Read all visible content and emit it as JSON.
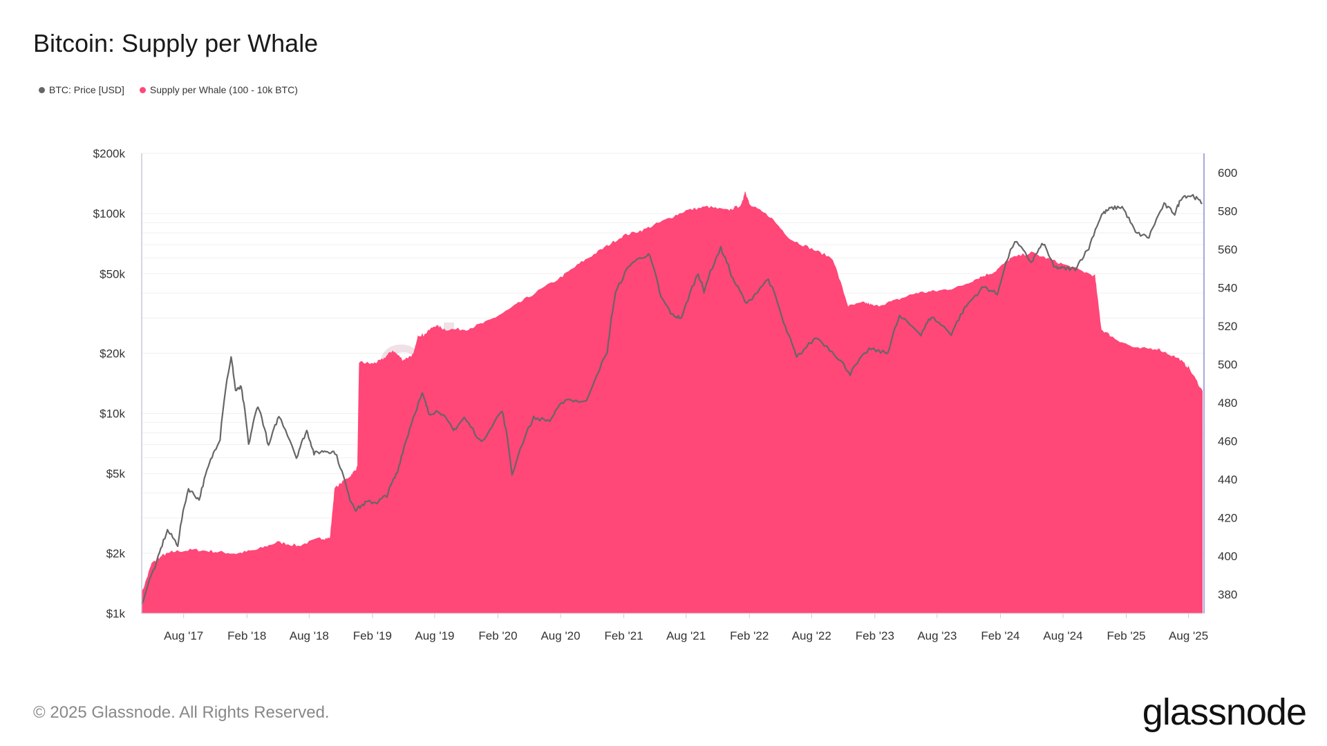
{
  "page": {
    "title": "Bitcoin: Supply per Whale",
    "footer": "© 2025 Glassnode. All Rights Reserved.",
    "brand": "glassnode",
    "watermark": "glassnode"
  },
  "legend": [
    {
      "label": "BTC: Price [USD]",
      "color": "#666666"
    },
    {
      "label": "Supply per Whale (100 - 10k BTC)",
      "color": "#ff4778"
    }
  ],
  "chart_data": {
    "type": "area",
    "title": "Bitcoin: Supply per Whale",
    "left_axis": {
      "scale": "log",
      "range": [
        1000,
        200000
      ],
      "ticks": [
        {
          "value": 1000,
          "label": "$1k"
        },
        {
          "value": 2000,
          "label": "$2k"
        },
        {
          "value": 5000,
          "label": "$5k"
        },
        {
          "value": 10000,
          "label": "$10k"
        },
        {
          "value": 20000,
          "label": "$20k"
        },
        {
          "value": 50000,
          "label": "$50k"
        },
        {
          "value": 100000,
          "label": "$100k"
        },
        {
          "value": 200000,
          "label": "$200k"
        }
      ]
    },
    "right_axis": {
      "scale": "linear",
      "range": [
        370,
        610
      ],
      "ticks": [
        380,
        400,
        420,
        440,
        460,
        480,
        500,
        520,
        540,
        560,
        580,
        600
      ]
    },
    "x_axis": {
      "range": [
        "2017-04-01",
        "2025-09-15"
      ],
      "ticks": [
        {
          "date": "2017-08-01",
          "label": "Aug '17"
        },
        {
          "date": "2018-02-01",
          "label": "Feb '18"
        },
        {
          "date": "2018-08-01",
          "label": "Aug '18"
        },
        {
          "date": "2019-02-01",
          "label": "Feb '19"
        },
        {
          "date": "2019-08-01",
          "label": "Aug '19"
        },
        {
          "date": "2020-02-01",
          "label": "Feb '20"
        },
        {
          "date": "2020-08-01",
          "label": "Aug '20"
        },
        {
          "date": "2021-02-01",
          "label": "Feb '21"
        },
        {
          "date": "2021-08-01",
          "label": "Aug '21"
        },
        {
          "date": "2022-02-01",
          "label": "Feb '22"
        },
        {
          "date": "2022-08-01",
          "label": "Aug '22"
        },
        {
          "date": "2023-02-01",
          "label": "Feb '23"
        },
        {
          "date": "2023-08-01",
          "label": "Aug '23"
        },
        {
          "date": "2024-02-01",
          "label": "Feb '24"
        },
        {
          "date": "2024-08-01",
          "label": "Aug '24"
        },
        {
          "date": "2025-02-01",
          "label": "Feb '25"
        },
        {
          "date": "2025-08-01",
          "label": "Aug '25"
        }
      ]
    },
    "grid": true,
    "legend_position": "top-left",
    "series": [
      {
        "name": "Supply per Whale (100 - 10k BTC)",
        "type": "area",
        "axis": "right",
        "color": "#ff4778",
        "points": [
          [
            "2017-04-01",
            380
          ],
          [
            "2017-05-01",
            396
          ],
          [
            "2017-06-01",
            400
          ],
          [
            "2017-07-01",
            402
          ],
          [
            "2017-09-01",
            403
          ],
          [
            "2017-11-01",
            402
          ],
          [
            "2018-01-01",
            401
          ],
          [
            "2018-03-01",
            403
          ],
          [
            "2018-05-01",
            407
          ],
          [
            "2018-07-01",
            405
          ],
          [
            "2018-09-01",
            409
          ],
          [
            "2018-10-01",
            409
          ],
          [
            "2018-10-15",
            435
          ],
          [
            "2018-12-01",
            442
          ],
          [
            "2018-12-20",
            446
          ],
          [
            "2018-12-25",
            501
          ],
          [
            "2019-02-01",
            500
          ],
          [
            "2019-03-01",
            502
          ],
          [
            "2019-04-01",
            507
          ],
          [
            "2019-05-01",
            502
          ],
          [
            "2019-06-01",
            505
          ],
          [
            "2019-06-15",
            515
          ],
          [
            "2019-07-01",
            515
          ],
          [
            "2019-08-01",
            520
          ],
          [
            "2019-09-01",
            518
          ],
          [
            "2019-11-01",
            518
          ],
          [
            "2020-01-01",
            522
          ],
          [
            "2020-03-01",
            528
          ],
          [
            "2020-05-01",
            535
          ],
          [
            "2020-08-01",
            545
          ],
          [
            "2020-10-01",
            553
          ],
          [
            "2020-12-01",
            560
          ],
          [
            "2021-02-01",
            567
          ],
          [
            "2021-04-01",
            570
          ],
          [
            "2021-06-01",
            575
          ],
          [
            "2021-08-01",
            580
          ],
          [
            "2021-10-01",
            582
          ],
          [
            "2021-12-01",
            580
          ],
          [
            "2022-01-10",
            583
          ],
          [
            "2022-01-20",
            590
          ],
          [
            "2022-02-01",
            583
          ],
          [
            "2022-04-01",
            577
          ],
          [
            "2022-06-01",
            565
          ],
          [
            "2022-08-01",
            560
          ],
          [
            "2022-10-01",
            555
          ],
          [
            "2022-11-15",
            530
          ],
          [
            "2023-01-01",
            532
          ],
          [
            "2023-02-01",
            530
          ],
          [
            "2023-04-01",
            533
          ],
          [
            "2023-06-01",
            537
          ],
          [
            "2023-08-01",
            538
          ],
          [
            "2023-10-01",
            540
          ],
          [
            "2023-12-01",
            545
          ],
          [
            "2024-01-15",
            548
          ],
          [
            "2024-03-01",
            555
          ],
          [
            "2024-05-01",
            558
          ],
          [
            "2024-07-01",
            554
          ],
          [
            "2024-09-01",
            550
          ],
          [
            "2024-11-01",
            546
          ],
          [
            "2024-11-20",
            518
          ],
          [
            "2025-01-01",
            513
          ],
          [
            "2025-03-01",
            508
          ],
          [
            "2025-05-01",
            508
          ],
          [
            "2025-07-01",
            503
          ],
          [
            "2025-08-01",
            498
          ],
          [
            "2025-09-10",
            486
          ]
        ]
      },
      {
        "name": "BTC: Price [USD]",
        "type": "line",
        "axis": "left",
        "color": "#666666",
        "points": [
          [
            "2017-04-01",
            1100
          ],
          [
            "2017-05-15",
            1800
          ],
          [
            "2017-06-15",
            2600
          ],
          [
            "2017-07-15",
            2200
          ],
          [
            "2017-08-15",
            4200
          ],
          [
            "2017-09-15",
            3700
          ],
          [
            "2017-10-15",
            5600
          ],
          [
            "2017-11-15",
            7500
          ],
          [
            "2017-12-17",
            19000
          ],
          [
            "2017-12-30",
            13000
          ],
          [
            "2018-01-15",
            13500
          ],
          [
            "2018-02-06",
            6900
          ],
          [
            "2018-03-05",
            11000
          ],
          [
            "2018-04-05",
            6800
          ],
          [
            "2018-05-05",
            9700
          ],
          [
            "2018-06-25",
            6000
          ],
          [
            "2018-07-25",
            8200
          ],
          [
            "2018-08-15",
            6300
          ],
          [
            "2018-09-15",
            6500
          ],
          [
            "2018-10-15",
            6400
          ],
          [
            "2018-11-25",
            3800
          ],
          [
            "2018-12-15",
            3300
          ],
          [
            "2019-01-15",
            3600
          ],
          [
            "2019-02-15",
            3600
          ],
          [
            "2019-03-15",
            3900
          ],
          [
            "2019-04-15",
            5100
          ],
          [
            "2019-05-15",
            7800
          ],
          [
            "2019-06-26",
            12500
          ],
          [
            "2019-07-15",
            10000
          ],
          [
            "2019-08-15",
            10300
          ],
          [
            "2019-09-25",
            8200
          ],
          [
            "2019-10-26",
            9500
          ],
          [
            "2019-12-15",
            7100
          ],
          [
            "2020-02-13",
            10300
          ],
          [
            "2020-03-13",
            4900
          ],
          [
            "2020-05-15",
            9500
          ],
          [
            "2020-07-01",
            9200
          ],
          [
            "2020-08-15",
            11800
          ],
          [
            "2020-10-15",
            11400
          ],
          [
            "2020-12-15",
            20000
          ],
          [
            "2021-01-08",
            40000
          ],
          [
            "2021-02-20",
            56000
          ],
          [
            "2021-04-14",
            63000
          ],
          [
            "2021-05-20",
            38000
          ],
          [
            "2021-06-22",
            31000
          ],
          [
            "2021-07-20",
            30000
          ],
          [
            "2021-09-05",
            50000
          ],
          [
            "2021-09-22",
            41000
          ],
          [
            "2021-11-10",
            67000
          ],
          [
            "2021-12-15",
            47000
          ],
          [
            "2022-01-24",
            35000
          ],
          [
            "2022-03-28",
            47000
          ],
          [
            "2022-05-12",
            28000
          ],
          [
            "2022-06-18",
            19000
          ],
          [
            "2022-08-15",
            24000
          ],
          [
            "2022-10-15",
            19200
          ],
          [
            "2022-11-21",
            15800
          ],
          [
            "2023-01-15",
            21000
          ],
          [
            "2023-03-10",
            20000
          ],
          [
            "2023-04-14",
            30500
          ],
          [
            "2023-06-15",
            25000
          ],
          [
            "2023-07-15",
            30500
          ],
          [
            "2023-09-11",
            25000
          ],
          [
            "2023-10-25",
            34500
          ],
          [
            "2023-12-15",
            43000
          ],
          [
            "2024-01-23",
            39500
          ],
          [
            "2024-03-14",
            73000
          ],
          [
            "2024-05-01",
            57000
          ],
          [
            "2024-06-05",
            71000
          ],
          [
            "2024-07-05",
            54000
          ],
          [
            "2024-08-05",
            53000
          ],
          [
            "2024-09-06",
            53000
          ],
          [
            "2024-10-15",
            67000
          ],
          [
            "2024-11-22",
            99000
          ],
          [
            "2024-12-17",
            106000
          ],
          [
            "2025-01-20",
            108000
          ],
          [
            "2025-02-28",
            80000
          ],
          [
            "2025-04-08",
            76000
          ],
          [
            "2025-05-22",
            111000
          ],
          [
            "2025-06-22",
            100000
          ],
          [
            "2025-07-14",
            122000
          ],
          [
            "2025-08-14",
            123000
          ],
          [
            "2025-09-10",
            112000
          ]
        ]
      }
    ]
  }
}
